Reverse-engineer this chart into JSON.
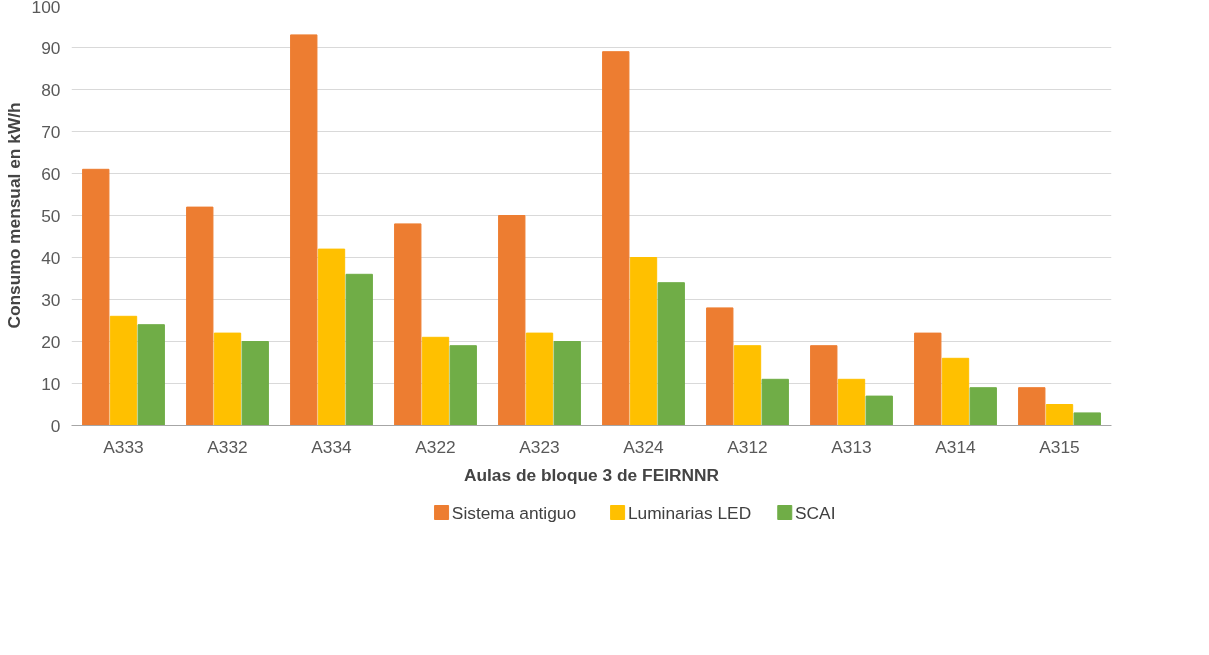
{
  "chart_data": {
    "type": "bar",
    "xlabel": "Aulas de bloque 3 de FEIRNNR",
    "ylabel": "Consumo mensual en kW/h",
    "categories": [
      "A333",
      "A332",
      "A334",
      "A322",
      "A323",
      "A324",
      "A312",
      "A313",
      "A314",
      "A315"
    ],
    "series": [
      {
        "name": "Sistema antiguo",
        "color": "#ed7d31",
        "values": [
          61,
          52,
          93,
          48,
          50,
          89,
          28,
          19,
          22,
          9
        ]
      },
      {
        "name": "Luminarias LED",
        "color": "#ffc000",
        "values": [
          26,
          22,
          42,
          21,
          22,
          40,
          19,
          11,
          16,
          5
        ]
      },
      {
        "name": "SCAI",
        "color": "#70ad47",
        "values": [
          24,
          20,
          36,
          19,
          20,
          34,
          11,
          7,
          9,
          3
        ]
      }
    ],
    "ylim": [
      0,
      100
    ],
    "yticks": [
      0,
      10,
      20,
      30,
      40,
      50,
      60,
      70,
      80,
      90,
      100
    ],
    "grid": "y",
    "legend": "bottom"
  }
}
